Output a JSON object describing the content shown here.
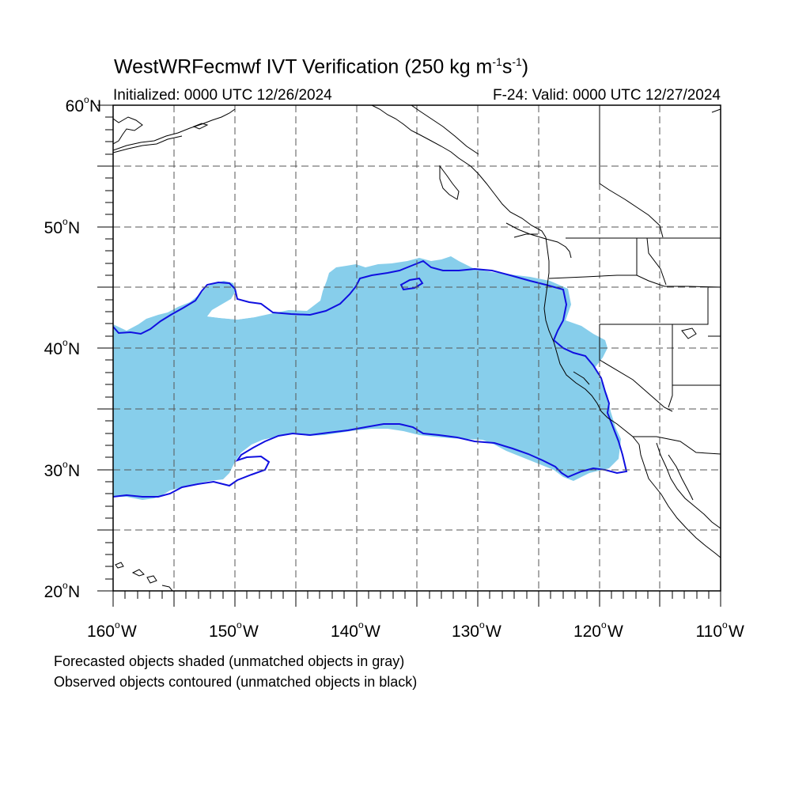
{
  "title": {
    "text_before": "WestWRFecmwf IVT Verification (250 kg m",
    "exp1": "-1",
    "text_mid": "s",
    "exp2": "-1",
    "text_after": ")"
  },
  "initialized": "Initialized: 0000 UTC 12/26/2024",
  "valid": "F-24: Valid: 0000 UTC 12/27/2024",
  "captions": [
    "Forecasted objects shaded (unmatched objects in gray)",
    "Observed objects contoured (unmatched objects in black)"
  ],
  "map": {
    "lon_range": [
      -160,
      -110
    ],
    "lat_range": [
      20,
      60
    ],
    "lat_labels": [
      {
        "lat": 60,
        "text": "60",
        "suffix": "N"
      },
      {
        "lat": 50,
        "text": "50",
        "suffix": "N"
      },
      {
        "lat": 40,
        "text": "40",
        "suffix": "N"
      },
      {
        "lat": 30,
        "text": "30",
        "suffix": "N"
      },
      {
        "lat": 20,
        "text": "20",
        "suffix": "N"
      }
    ],
    "lon_labels": [
      {
        "lon": -160,
        "text": "160",
        "suffix": "W"
      },
      {
        "lon": -150,
        "text": "150",
        "suffix": "W"
      },
      {
        "lon": -140,
        "text": "140",
        "suffix": "W"
      },
      {
        "lon": -130,
        "text": "130",
        "suffix": "W"
      },
      {
        "lon": -120,
        "text": "120",
        "suffix": "W"
      },
      {
        "lon": -110,
        "text": "110",
        "suffix": "W"
      }
    ],
    "gridline_spacing_deg": 5,
    "gridlines": "dashed",
    "colors": {
      "forecast_fill": "#87ceeb",
      "observed_contour": "#1010e0",
      "coastline": "#000000",
      "grid": "#555555"
    }
  }
}
